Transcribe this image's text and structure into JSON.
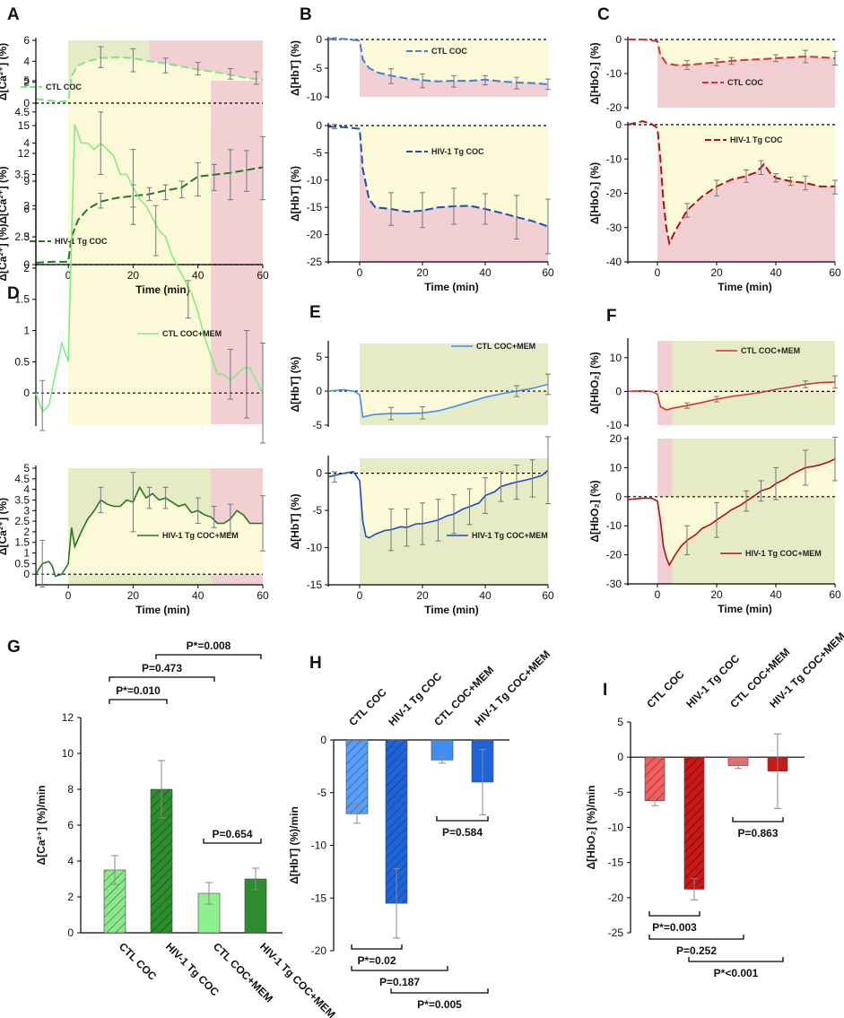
{
  "figure": {
    "time_axis_label": "Time (min)",
    "colors": {
      "green_pale": "#7ee87e",
      "green_dark": "#1f7a1f",
      "green_mid": "#2e8b2e",
      "blue": "#1e5bcf",
      "blue_light": "#3f8ef0",
      "red": "#d43333",
      "red_dark": "#b01212",
      "red_light": "#ef6a6a",
      "shade_green": "#e7ebc5",
      "shade_red": "#f2cfd3",
      "shade_yellow": "#fcf9d8"
    }
  },
  "chart_data": [
    {
      "panel": "A",
      "type": "line",
      "ylabel": "Δ[Ca²⁺] (%)",
      "legend": "CTL COC",
      "series_style": "dashed",
      "ylim": [
        0,
        6
      ],
      "yticks": [
        0,
        2,
        4,
        6
      ],
      "xlim": [
        -10,
        60
      ],
      "xticks": [],
      "x": [
        -10,
        -3,
        0,
        1,
        3,
        6,
        10,
        15,
        20,
        25,
        30,
        35,
        40,
        45,
        50,
        55,
        60
      ],
      "y": [
        0.4,
        0.15,
        0.2,
        2.6,
        3.6,
        4.0,
        4.3,
        4.4,
        4.3,
        4.0,
        3.8,
        3.5,
        3.2,
        3.0,
        2.7,
        2.4,
        2.2
      ],
      "err_x": [
        10,
        20,
        30,
        40,
        50,
        58
      ],
      "err_y": [
        4.4,
        4.1,
        3.6,
        3.3,
        2.8,
        2.4
      ],
      "err_sd": [
        1.0,
        1.1,
        0.7,
        0.6,
        0.5,
        0.6
      ]
    },
    {
      "panel": "A2",
      "type": "line",
      "ylabel": "Δ[Ca²⁺] (%)",
      "legend": "HIV-1 Tg COC",
      "series_style": "dashed",
      "ylim": [
        0,
        15
      ],
      "yticks": [
        0,
        3,
        6,
        9,
        12,
        15
      ],
      "xlim": [
        -10,
        60
      ],
      "xticks": [
        0,
        20,
        40,
        60
      ],
      "x": [
        -10,
        -5,
        0,
        1,
        3,
        6,
        10,
        15,
        20,
        25,
        30,
        35,
        40,
        45,
        50,
        55,
        60
      ],
      "y": [
        0.2,
        0.3,
        0.3,
        3.0,
        4.8,
        6.0,
        6.8,
        7.2,
        7.4,
        7.6,
        8.0,
        8.3,
        9.5,
        9.7,
        9.9,
        10.2,
        10.5
      ],
      "err_x": [
        10,
        20,
        25,
        30,
        35,
        40,
        45,
        50,
        55,
        60
      ],
      "err_y": [
        6.9,
        7.4,
        7.6,
        7.8,
        8.1,
        9.2,
        9.4,
        9.7,
        10.1,
        10.4
      ],
      "err_sd": [
        0.8,
        1.2,
        0.7,
        0.8,
        0.9,
        1.8,
        1.4,
        2.7,
        2.2,
        3.4
      ]
    },
    {
      "panel": "B",
      "type": "line",
      "ylabel": "Δ[HbT] (%)",
      "legend": "CTL COC",
      "series_style": "dashed",
      "ylim": [
        -10,
        0
      ],
      "yticks": [
        0,
        -5,
        -10
      ],
      "xlim": [
        -10,
        60
      ],
      "xticks": [],
      "x": [
        -10,
        -5,
        0,
        1,
        3,
        6,
        10,
        15,
        20,
        25,
        30,
        35,
        40,
        45,
        50,
        55,
        60
      ],
      "y": [
        0.1,
        0.1,
        -0.2,
        -3.5,
        -5.0,
        -5.8,
        -6.3,
        -6.8,
        -7.1,
        -7.3,
        -7.2,
        -7.2,
        -7.0,
        -7.3,
        -7.5,
        -7.6,
        -7.8
      ],
      "err_x": [
        -8,
        10,
        20,
        30,
        40,
        50,
        60
      ],
      "err_y": [
        0.1,
        -6.4,
        -7.2,
        -7.3,
        -7.1,
        -7.6,
        -7.8
      ],
      "err_sd": [
        0.2,
        1.3,
        1.2,
        1.0,
        0.8,
        1.0,
        0.9
      ]
    },
    {
      "panel": "B2",
      "type": "line",
      "ylabel": "Δ[HbT] (%)",
      "legend": "HIV-1 Tg COC",
      "series_style": "dashed",
      "ylim": [
        -25,
        0
      ],
      "yticks": [
        0,
        -5,
        -10,
        -15,
        -20,
        -25
      ],
      "xlim": [
        -10,
        60
      ],
      "xticks": [
        0,
        20,
        40,
        60
      ],
      "x": [
        -10,
        -5,
        0,
        1,
        3,
        5,
        10,
        15,
        20,
        25,
        30,
        35,
        40,
        45,
        50,
        55,
        60
      ],
      "y": [
        -0.2,
        -0.3,
        -0.6,
        -8.0,
        -13.5,
        -15.0,
        -15.3,
        -15.8,
        -15.6,
        -15.0,
        -14.8,
        -14.7,
        -15.3,
        -16.0,
        -16.8,
        -17.5,
        -18.5
      ],
      "err_x": [
        -8,
        10,
        20,
        30,
        40,
        50,
        60
      ],
      "err_y": [
        -0.2,
        -15.3,
        -15.5,
        -14.8,
        -15.3,
        -16.8,
        -18.5
      ],
      "err_sd": [
        0.4,
        3.0,
        3.2,
        3.3,
        2.8,
        4.0,
        5.0
      ]
    },
    {
      "panel": "C",
      "type": "line",
      "ylabel": "Δ[HbO₂] (%)",
      "legend": "CTL COC",
      "series_style": "dashed",
      "ylim": [
        -20,
        0
      ],
      "yticks": [
        0,
        -10,
        -20
      ],
      "xlim": [
        -10,
        60
      ],
      "xticks": [],
      "x": [
        -10,
        -5,
        0,
        1,
        3,
        6,
        10,
        15,
        20,
        25,
        30,
        35,
        40,
        45,
        50,
        55,
        60
      ],
      "y": [
        0.0,
        0.0,
        -0.5,
        -4.5,
        -7.0,
        -7.5,
        -7.5,
        -7.1,
        -6.7,
        -6.3,
        -6.0,
        -5.8,
        -5.5,
        -5.3,
        -5.0,
        -5.2,
        -5.5
      ],
      "err_x": [
        10,
        20,
        25,
        40,
        50,
        60
      ],
      "err_y": [
        -7.5,
        -6.7,
        -6.3,
        -5.5,
        -5.0,
        -5.5
      ],
      "err_sd": [
        1.3,
        1.0,
        1.0,
        1.0,
        1.8,
        2.0
      ]
    },
    {
      "panel": "C2",
      "type": "line",
      "ylabel": "Δ[HbO₂] (%)",
      "legend": "HIV-1 Tg COC",
      "series_style": "dashed",
      "ylim": [
        -40,
        0
      ],
      "yticks": [
        0,
        -10,
        -20,
        -30,
        -40
      ],
      "xlim": [
        -10,
        60
      ],
      "xticks": [
        0,
        20,
        40,
        60
      ],
      "x": [
        -10,
        -5,
        -2,
        0,
        1,
        2,
        3,
        4,
        6,
        8,
        10,
        15,
        20,
        25,
        30,
        33,
        35,
        36,
        38,
        40,
        45,
        50,
        55,
        60
      ],
      "y": [
        0.0,
        1.0,
        0.2,
        -1.0,
        -10.0,
        -22.0,
        -30.0,
        -34.5,
        -31.0,
        -28.0,
        -25.0,
        -21.0,
        -18.0,
        -16.0,
        -15.0,
        -14.0,
        -12.5,
        -11.5,
        -14.0,
        -15.5,
        -16.5,
        -17.0,
        -18.0,
        -18.0
      ],
      "err_x": [
        10,
        20,
        30,
        35,
        40,
        45,
        50,
        60
      ],
      "err_y": [
        -25.0,
        -18.5,
        -15.0,
        -12.5,
        -15.5,
        -16.5,
        -17.0,
        -18.2
      ],
      "err_sd": [
        2.0,
        2.3,
        1.8,
        2.0,
        1.2,
        1.2,
        2.0,
        2.0
      ]
    },
    {
      "panel": "D",
      "type": "line",
      "ylabel": "Δ[Ca²⁺] (%)",
      "legend": "CTL COC+MEM",
      "series_style": "solid",
      "ylim": [
        -0.5,
        5
      ],
      "yticks": [
        0,
        0.5,
        1,
        1.5,
        2,
        2.5,
        3,
        3.5,
        4,
        4.5,
        5
      ],
      "xlim": [
        -10,
        60
      ],
      "xticks": [],
      "x": [
        -10,
        -8,
        -6,
        -4,
        -2,
        0,
        1,
        2,
        4,
        6,
        8,
        10,
        12,
        14,
        16,
        18,
        20,
        22,
        24,
        26,
        28,
        30,
        32,
        34,
        36,
        38,
        40,
        42,
        44,
        46,
        48,
        50,
        52,
        54,
        56,
        58,
        60
      ],
      "y": [
        0.0,
        -0.3,
        -0.2,
        0.3,
        0.8,
        0.5,
        2.5,
        4.3,
        4.0,
        4.0,
        3.9,
        4.0,
        3.9,
        3.8,
        3.5,
        3.5,
        3.3,
        3.1,
        3.0,
        2.8,
        2.6,
        2.5,
        2.2,
        2.0,
        1.8,
        1.6,
        1.3,
        0.9,
        0.6,
        0.3,
        0.3,
        0.2,
        0.3,
        0.4,
        0.4,
        0.2,
        0.0
      ],
      "err_x": [
        -8,
        10,
        20,
        27,
        37,
        50,
        55,
        60
      ],
      "err_y": [
        -0.2,
        4.0,
        3.3,
        2.6,
        1.5,
        0.3,
        0.3,
        0.0
      ],
      "err_sd": [
        0.4,
        0.5,
        0.6,
        0.4,
        0.3,
        0.4,
        0.7,
        0.8
      ]
    },
    {
      "panel": "D2",
      "type": "line",
      "ylabel": "Δ[Ca²⁺] (%)",
      "legend": "HIV-1 Tg COC+MEM",
      "series_style": "solid",
      "ylim": [
        -0.5,
        5
      ],
      "yticks": [
        0,
        0.5,
        1,
        1.5,
        2,
        2.5,
        3,
        3.5,
        4,
        4.5,
        5
      ],
      "xlim": [
        -10,
        60
      ],
      "xticks": [
        0,
        20,
        40,
        60
      ],
      "x": [
        -10,
        -8,
        -6,
        -5,
        -4,
        -2,
        0,
        1,
        2,
        4,
        6,
        8,
        10,
        12,
        14,
        16,
        18,
        20,
        22,
        24,
        26,
        28,
        30,
        32,
        34,
        36,
        38,
        40,
        42,
        44,
        46,
        48,
        50,
        52,
        54,
        56,
        58,
        60
      ],
      "y": [
        0.0,
        0.5,
        0.6,
        0.4,
        -0.1,
        0.0,
        0.5,
        2.2,
        1.3,
        2.0,
        2.6,
        3.0,
        3.5,
        3.3,
        3.2,
        3.2,
        3.5,
        3.4,
        4.1,
        3.6,
        3.8,
        3.5,
        3.6,
        3.4,
        3.2,
        3.3,
        2.9,
        3.0,
        2.8,
        2.7,
        2.4,
        2.4,
        2.6,
        3.0,
        2.8,
        2.4,
        2.4,
        2.4
      ],
      "err_x": [
        -8,
        10,
        20,
        25,
        30,
        40,
        45,
        50,
        60
      ],
      "err_y": [
        0.5,
        3.5,
        3.4,
        3.6,
        3.6,
        3.0,
        2.7,
        2.6,
        2.4
      ],
      "err_sd": [
        1.1,
        0.6,
        1.4,
        0.5,
        0.5,
        0.6,
        0.5,
        0.7,
        1.3
      ]
    },
    {
      "panel": "E",
      "type": "line",
      "ylabel": "Δ[HbT] (%)",
      "legend": "CTL COC+MEM",
      "series_style": "solid",
      "ylim": [
        -5,
        7
      ],
      "yticks": [
        5,
        0,
        -5
      ],
      "xlim": [
        -10,
        60
      ],
      "xticks": [],
      "x": [
        -10,
        -5,
        -2,
        0,
        1,
        3,
        5,
        10,
        15,
        20,
        25,
        30,
        35,
        40,
        45,
        50,
        55,
        60
      ],
      "y": [
        0.0,
        0.2,
        0.0,
        -0.5,
        -3.8,
        -3.6,
        -3.4,
        -3.3,
        -3.3,
        -3.2,
        -2.9,
        -2.3,
        -1.6,
        -0.9,
        -0.4,
        0.0,
        0.4,
        1.0
      ],
      "err_x": [
        10,
        20,
        50,
        60
      ],
      "err_y": [
        -3.3,
        -3.2,
        0.0,
        1.0
      ],
      "err_sd": [
        0.9,
        0.9,
        0.8,
        1.5
      ]
    },
    {
      "panel": "E2",
      "type": "line",
      "ylabel": "Δ[HbT] (%)",
      "legend": "HIV-1 Tg COC+MEM",
      "series_style": "solid",
      "ylim": [
        -15,
        2
      ],
      "yticks": [
        0,
        -5,
        -10,
        -15
      ],
      "xlim": [
        -10,
        60
      ],
      "xticks": [
        0,
        20,
        40,
        60
      ],
      "x": [
        -10,
        -5,
        -2,
        0,
        1,
        2,
        3,
        5,
        8,
        10,
        13,
        15,
        18,
        20,
        23,
        25,
        28,
        30,
        33,
        35,
        38,
        40,
        43,
        45,
        48,
        50,
        53,
        55,
        58,
        60
      ],
      "y": [
        -0.5,
        0.0,
        0.2,
        -1.0,
        -6.5,
        -8.5,
        -8.7,
        -8.2,
        -7.7,
        -7.6,
        -7.2,
        -7.3,
        -6.8,
        -6.8,
        -6.5,
        -6.3,
        -5.7,
        -5.5,
        -4.8,
        -4.5,
        -4.0,
        -3.0,
        -2.5,
        -1.8,
        -1.4,
        -1.2,
        -0.9,
        -0.7,
        -0.3,
        0.4
      ],
      "err_x": [
        -8,
        10,
        15,
        20,
        25,
        30,
        35,
        40,
        45,
        50,
        55,
        60
      ],
      "err_y": [
        -0.5,
        -7.6,
        -7.3,
        -6.8,
        -6.3,
        -5.5,
        -4.5,
        -3.0,
        -1.8,
        -1.2,
        -0.7,
        0.4
      ],
      "err_sd": [
        0.7,
        2.8,
        2.5,
        2.8,
        2.8,
        2.6,
        2.4,
        2.4,
        2.0,
        2.3,
        2.5,
        4.5
      ]
    },
    {
      "panel": "F",
      "type": "line",
      "ylabel": "Δ[HbO₂] (%)",
      "legend": "CTL COC+MEM",
      "series_style": "solid",
      "ylim": [
        -10,
        15
      ],
      "yticks": [
        10,
        0,
        -10
      ],
      "xlim": [
        -10,
        60
      ],
      "xticks": [],
      "x": [
        -10,
        -5,
        -2,
        0,
        1,
        3,
        5,
        10,
        15,
        20,
        25,
        30,
        35,
        40,
        45,
        50,
        55,
        60
      ],
      "y": [
        0.0,
        0.2,
        0.0,
        -0.8,
        -4.5,
        -5.5,
        -5.0,
        -4.2,
        -3.3,
        -2.3,
        -1.5,
        -0.9,
        -0.3,
        0.6,
        1.3,
        2.1,
        2.6,
        2.8
      ],
      "err_x": [
        10,
        20,
        50,
        60
      ],
      "err_y": [
        -4.2,
        -2.3,
        2.1,
        2.8
      ],
      "err_sd": [
        0.8,
        0.8,
        1.0,
        1.8
      ]
    },
    {
      "panel": "F2",
      "type": "line",
      "ylabel": "Δ[HbO₂] (%)",
      "legend": "HIV-1 Tg COC+MEM",
      "series_style": "solid",
      "ylim": [
        -30,
        20
      ],
      "yticks": [
        20,
        10,
        0,
        -10,
        -20,
        -30
      ],
      "xlim": [
        -10,
        60
      ],
      "xticks": [
        0,
        20,
        40,
        60
      ],
      "x": [
        -10,
        -5,
        -2,
        0,
        1,
        2,
        3,
        4,
        6,
        8,
        10,
        13,
        15,
        18,
        20,
        23,
        25,
        28,
        30,
        33,
        35,
        38,
        40,
        43,
        45,
        48,
        50,
        53,
        55,
        58,
        60
      ],
      "y": [
        -1.0,
        -0.5,
        -0.5,
        -1.5,
        -8.0,
        -17.0,
        -21.0,
        -23.5,
        -20.0,
        -17.0,
        -15.0,
        -13.0,
        -11.0,
        -9.5,
        -8.0,
        -6.0,
        -4.5,
        -3.0,
        -1.5,
        0.5,
        2.0,
        3.0,
        4.5,
        6.0,
        7.5,
        9.0,
        10.0,
        10.5,
        11.0,
        12.0,
        13.0
      ],
      "err_x": [
        10,
        20,
        30,
        35,
        40,
        50,
        60
      ],
      "err_y": [
        -15.0,
        -8.0,
        -1.5,
        2.0,
        4.5,
        10.0,
        13.0
      ],
      "err_sd": [
        5.0,
        6.0,
        3.5,
        3.5,
        5.5,
        6.0,
        7.5
      ]
    },
    {
      "panel": "G",
      "type": "bar",
      "ylabel": "Δ[Ca²⁺] (%)/min",
      "ylim": [
        0,
        12
      ],
      "yticks": [
        0,
        2,
        4,
        6,
        8,
        10,
        12
      ],
      "categories": [
        "CTL COC",
        "HIV-1 Tg COC",
        "CTL COC+MEM",
        "HIV-1 Tg COC+MEM"
      ],
      "values": [
        3.5,
        8.0,
        2.2,
        3.0
      ],
      "errors": [
        0.8,
        1.6,
        0.6,
        0.6
      ],
      "comparisons": [
        {
          "a": 0,
          "b": 1,
          "label": "P*=0.010"
        },
        {
          "a": 0,
          "b": 2,
          "label": "P=0.473"
        },
        {
          "a": 1,
          "b": 3,
          "label": "P*=0.008"
        },
        {
          "a": 2,
          "b": 3,
          "label": "P=0.654"
        }
      ]
    },
    {
      "panel": "H",
      "type": "bar",
      "ylabel": "Δ[HbT] (%)/min",
      "ylim": [
        -20,
        0
      ],
      "yticks": [
        0,
        -5,
        -10,
        -15,
        -20
      ],
      "categories": [
        "CTL COC",
        "HIV-1 Tg COC",
        "CTL COC+MEM",
        "HIV-1 Tg COC+MEM"
      ],
      "values": [
        -7.0,
        -15.5,
        -1.9,
        -4.0
      ],
      "errors": [
        0.9,
        3.3,
        0.3,
        3.1
      ],
      "comparisons": [
        {
          "a": 0,
          "b": 1,
          "label": "P*=0.02"
        },
        {
          "a": 0,
          "b": 2,
          "label": "P=0.187"
        },
        {
          "a": 1,
          "b": 3,
          "label": "P*=0.005"
        },
        {
          "a": 2,
          "b": 3,
          "label": "P=0.584"
        }
      ]
    },
    {
      "panel": "I",
      "type": "bar",
      "ylabel": "Δ[HbO₂] (%)/min",
      "ylim": [
        -25,
        5
      ],
      "yticks": [
        5,
        0,
        -5,
        -10,
        -15,
        -20,
        -25
      ],
      "categories": [
        "CTL COC",
        "HIV-1 Tg COC",
        "CTL COC+MEM",
        "HIV-1 Tg COC+MEM"
      ],
      "values": [
        -6.2,
        -18.8,
        -1.2,
        -2.0
      ],
      "errors": [
        0.7,
        1.5,
        0.4,
        5.3
      ],
      "comparisons": [
        {
          "a": 0,
          "b": 1,
          "label": "P*=0.003"
        },
        {
          "a": 0,
          "b": 2,
          "label": "P=0.252"
        },
        {
          "a": 1,
          "b": 3,
          "label": "P*<0.001"
        },
        {
          "a": 2,
          "b": 3,
          "label": "P=0.863"
        }
      ]
    }
  ]
}
